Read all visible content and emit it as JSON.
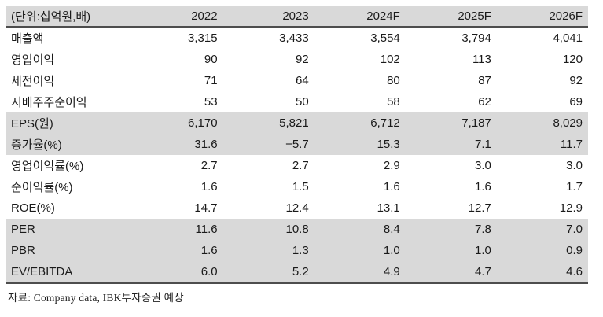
{
  "table": {
    "unit_label": "(단위:십억원,배)",
    "columns": [
      "2022",
      "2023",
      "2024F",
      "2025F",
      "2026F"
    ],
    "rows": [
      {
        "label": "매출액",
        "values": [
          "3,315",
          "3,433",
          "3,554",
          "3,794",
          "4,041"
        ],
        "shaded": false
      },
      {
        "label": "영업이익",
        "values": [
          "90",
          "92",
          "102",
          "113",
          "120"
        ],
        "shaded": false
      },
      {
        "label": "세전이익",
        "values": [
          "71",
          "64",
          "80",
          "87",
          "92"
        ],
        "shaded": false
      },
      {
        "label": "지배주주순이익",
        "values": [
          "53",
          "50",
          "58",
          "62",
          "69"
        ],
        "shaded": false
      },
      {
        "label": "EPS(원)",
        "values": [
          "6,170",
          "5,821",
          "6,712",
          "7,187",
          "8,029"
        ],
        "shaded": true
      },
      {
        "label": "증가율(%)",
        "values": [
          "31.6",
          "−5.7",
          "15.3",
          "7.1",
          "11.7"
        ],
        "shaded": true
      },
      {
        "label": "영업이익률(%)",
        "values": [
          "2.7",
          "2.7",
          "2.9",
          "3.0",
          "3.0"
        ],
        "shaded": false
      },
      {
        "label": "순이익률(%)",
        "values": [
          "1.6",
          "1.5",
          "1.6",
          "1.6",
          "1.7"
        ],
        "shaded": false
      },
      {
        "label": "ROE(%)",
        "values": [
          "14.7",
          "12.4",
          "13.1",
          "12.7",
          "12.9"
        ],
        "shaded": false
      },
      {
        "label": "PER",
        "values": [
          "11.6",
          "10.8",
          "8.4",
          "7.8",
          "7.0"
        ],
        "shaded": true
      },
      {
        "label": "PBR",
        "values": [
          "1.6",
          "1.3",
          "1.0",
          "1.0",
          "0.9"
        ],
        "shaded": true
      },
      {
        "label": "EV/EBITDA",
        "values": [
          "6.0",
          "5.2",
          "4.9",
          "4.7",
          "4.6"
        ],
        "shaded": true
      }
    ]
  },
  "footer": {
    "source_note": "자료: Company data, IBK투자증권 예상"
  },
  "colors": {
    "row_shade": "#d9d9d9",
    "border_dark": "#4d4d4d",
    "text": "#1a1a1a"
  }
}
